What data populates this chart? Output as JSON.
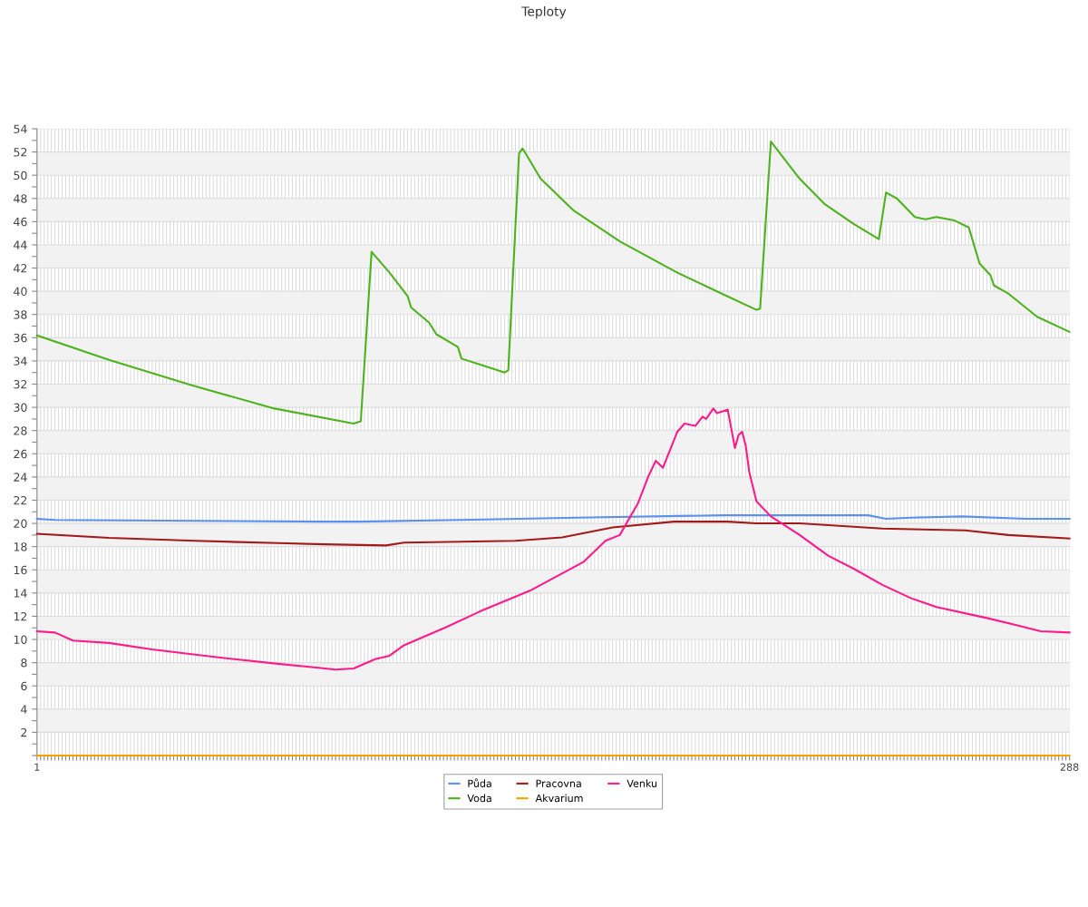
{
  "chart_data": {
    "type": "line",
    "title": "Teploty",
    "legend": "bottom",
    "grid": true,
    "marker": "none",
    "line_style": "solid",
    "xlim": [
      1,
      288
    ],
    "xticks": [
      1,
      {
        "value": 2,
        "label": null
      },
      {
        "value": 3,
        "label": null
      },
      {
        "value": 4,
        "label": null
      },
      {
        "value": 5,
        "label": null
      },
      {
        "value": 6,
        "label": null
      },
      {
        "value": 7,
        "label": null
      },
      {
        "value": 8,
        "label": null
      },
      {
        "value": 9,
        "label": null
      },
      {
        "value": 10,
        "label": null
      },
      {
        "value": 11,
        "label": null
      },
      {
        "value": 12,
        "label": null
      },
      {
        "value": 13,
        "label": null
      },
      {
        "value": 14,
        "label": null
      },
      {
        "value": 15,
        "label": null
      },
      {
        "value": 16,
        "label": null
      },
      {
        "value": 17,
        "label": null
      },
      {
        "value": 18,
        "label": null
      },
      {
        "value": 19,
        "label": null
      },
      {
        "value": 20,
        "label": null
      },
      {
        "value": 21,
        "label": null
      },
      {
        "value": 22,
        "label": null
      },
      {
        "value": 23,
        "label": null
      },
      {
        "value": 24,
        "label": null
      },
      {
        "value": 25,
        "label": null
      },
      {
        "value": 26,
        "label": null
      },
      {
        "value": 27,
        "label": null
      },
      {
        "value": 28,
        "label": null
      },
      {
        "value": 29,
        "label": null
      },
      {
        "value": 30,
        "label": null
      },
      {
        "value": 31,
        "label": null
      },
      {
        "value": 32,
        "label": null
      },
      {
        "value": 33,
        "label": null
      },
      {
        "value": 34,
        "label": null
      },
      {
        "value": 35,
        "label": null
      },
      {
        "value": 36,
        "label": null
      },
      {
        "value": 37,
        "label": null
      },
      {
        "value": 38,
        "label": null
      },
      {
        "value": 39,
        "label": null
      },
      {
        "value": 40,
        "label": null
      },
      {
        "value": 41,
        "label": null
      },
      {
        "value": 42,
        "label": null
      },
      {
        "value": 43,
        "label": null
      },
      {
        "value": 44,
        "label": null
      },
      {
        "value": 45,
        "label": null
      },
      {
        "value": 46,
        "label": null
      },
      {
        "value": 47,
        "label": null
      },
      {
        "value": 48,
        "label": null
      },
      {
        "value": 49,
        "label": null
      },
      {
        "value": 50,
        "label": null
      },
      {
        "value": 51,
        "label": null
      },
      {
        "value": 52,
        "label": null
      },
      {
        "value": 53,
        "label": null
      },
      {
        "value": 54,
        "label": null
      },
      {
        "value": 55,
        "label": null
      },
      {
        "value": 56,
        "label": null
      },
      {
        "value": 57,
        "label": null
      },
      {
        "value": 58,
        "label": null
      },
      {
        "value": 59,
        "label": null
      },
      {
        "value": 60,
        "label": null
      },
      {
        "value": 61,
        "label": null
      },
      {
        "value": 62,
        "label": null
      },
      {
        "value": 63,
        "label": null
      },
      {
        "value": 64,
        "label": null
      },
      {
        "value": 65,
        "label": null
      },
      {
        "value": 66,
        "label": null
      },
      {
        "value": 67,
        "label": null
      },
      {
        "value": 68,
        "label": null
      },
      {
        "value": 69,
        "label": null
      },
      {
        "value": 70,
        "label": null
      },
      {
        "value": 71,
        "label": null
      },
      {
        "value": 72,
        "label": null
      },
      {
        "value": 73,
        "label": null
      },
      {
        "value": 74,
        "label": null
      },
      {
        "value": 75,
        "label": null
      },
      {
        "value": 76,
        "label": null
      },
      {
        "value": 77,
        "label": null
      },
      {
        "value": 78,
        "label": null
      },
      {
        "value": 79,
        "label": null
      },
      {
        "value": 80,
        "label": null
      },
      {
        "value": 81,
        "label": null
      },
      {
        "value": 82,
        "label": null
      },
      {
        "value": 83,
        "label": null
      },
      {
        "value": 84,
        "label": null
      },
      {
        "value": 85,
        "label": null
      },
      {
        "value": 86,
        "label": null
      },
      {
        "value": 87,
        "label": null
      },
      {
        "value": 88,
        "label": null
      },
      {
        "value": 89,
        "label": null
      },
      {
        "value": 90,
        "label": null
      },
      {
        "value": 91,
        "label": null
      },
      {
        "value": 92,
        "label": null
      },
      {
        "value": 93,
        "label": null
      },
      {
        "value": 94,
        "label": null
      },
      {
        "value": 95,
        "label": null
      },
      {
        "value": 96,
        "label": null
      },
      {
        "value": 97,
        "label": null
      },
      {
        "value": 98,
        "label": null
      },
      {
        "value": 99,
        "label": null
      },
      {
        "value": 100,
        "label": null
      },
      {
        "value": 101,
        "label": null
      },
      {
        "value": 102,
        "label": null
      },
      {
        "value": 103,
        "label": null
      },
      {
        "value": 104,
        "label": null
      },
      {
        "value": 105,
        "label": null
      },
      {
        "value": 106,
        "label": null
      },
      {
        "value": 107,
        "label": null
      },
      {
        "value": 108,
        "label": null
      },
      {
        "value": 109,
        "label": null
      },
      {
        "value": 110,
        "label": null
      },
      {
        "value": 111,
        "label": null
      },
      {
        "value": 112,
        "label": null
      },
      {
        "value": 113,
        "label": null
      },
      {
        "value": 114,
        "label": null
      },
      {
        "value": 115,
        "label": null
      },
      {
        "value": 116,
        "label": null
      },
      {
        "value": 117,
        "label": null
      },
      {
        "value": 118,
        "label": null
      },
      {
        "value": 119,
        "label": null
      },
      {
        "value": 120,
        "label": null
      },
      {
        "value": 121,
        "label": null
      },
      {
        "value": 122,
        "label": null
      },
      {
        "value": 123,
        "label": null
      },
      {
        "value": 124,
        "label": null
      },
      {
        "value": 125,
        "label": null
      },
      {
        "value": 126,
        "label": null
      },
      {
        "value": 127,
        "label": null
      },
      {
        "value": 128,
        "label": null
      },
      {
        "value": 129,
        "label": null
      },
      {
        "value": 130,
        "label": null
      },
      {
        "value": 131,
        "label": null
      },
      {
        "value": 132,
        "label": null
      },
      {
        "value": 133,
        "label": null
      },
      {
        "value": 134,
        "label": null
      },
      {
        "value": 135,
        "label": null
      },
      {
        "value": 136,
        "label": null
      },
      {
        "value": 137,
        "label": null
      },
      {
        "value": 138,
        "label": null
      },
      {
        "value": 139,
        "label": null
      },
      {
        "value": 140,
        "label": null
      },
      {
        "value": 141,
        "label": null
      },
      {
        "value": 142,
        "label": null
      },
      {
        "value": 143,
        "label": null
      },
      {
        "value": 144,
        "label": null
      },
      {
        "value": 145,
        "label": null
      },
      {
        "value": 146,
        "label": null
      },
      {
        "value": 147,
        "label": null
      },
      {
        "value": 148,
        "label": null
      },
      {
        "value": 149,
        "label": null
      },
      {
        "value": 150,
        "label": null
      },
      {
        "value": 151,
        "label": null
      },
      {
        "value": 152,
        "label": null
      },
      {
        "value": 153,
        "label": null
      },
      {
        "value": 154,
        "label": null
      },
      {
        "value": 155,
        "label": null
      },
      {
        "value": 156,
        "label": null
      },
      {
        "value": 157,
        "label": null
      },
      {
        "value": 158,
        "label": null
      },
      {
        "value": 159,
        "label": null
      },
      {
        "value": 160,
        "label": null
      },
      {
        "value": 161,
        "label": null
      },
      {
        "value": 162,
        "label": null
      },
      {
        "value": 163,
        "label": null
      },
      {
        "value": 164,
        "label": null
      },
      {
        "value": 165,
        "label": null
      },
      {
        "value": 166,
        "label": null
      },
      {
        "value": 167,
        "label": null
      },
      {
        "value": 168,
        "label": null
      },
      {
        "value": 169,
        "label": null
      },
      {
        "value": 170,
        "label": null
      },
      {
        "value": 171,
        "label": null
      },
      {
        "value": 172,
        "label": null
      },
      {
        "value": 173,
        "label": null
      },
      {
        "value": 174,
        "label": null
      },
      {
        "value": 175,
        "label": null
      },
      {
        "value": 176,
        "label": null
      },
      {
        "value": 177,
        "label": null
      },
      {
        "value": 178,
        "label": null
      },
      {
        "value": 179,
        "label": null
      },
      {
        "value": 180,
        "label": null
      },
      {
        "value": 181,
        "label": null
      },
      {
        "value": 182,
        "label": null
      },
      {
        "value": 183,
        "label": null
      },
      {
        "value": 184,
        "label": null
      },
      {
        "value": 185,
        "label": null
      },
      {
        "value": 186,
        "label": null
      },
      {
        "value": 187,
        "label": null
      },
      {
        "value": 188,
        "label": null
      },
      {
        "value": 189,
        "label": null
      },
      {
        "value": 190,
        "label": null
      },
      {
        "value": 191,
        "label": null
      },
      {
        "value": 192,
        "label": null
      },
      {
        "value": 193,
        "label": null
      },
      {
        "value": 194,
        "label": null
      },
      {
        "value": 195,
        "label": null
      },
      {
        "value": 196,
        "label": null
      },
      {
        "value": 197,
        "label": null
      },
      {
        "value": 198,
        "label": null
      },
      {
        "value": 199,
        "label": null
      },
      {
        "value": 200,
        "label": null
      },
      {
        "value": 201,
        "label": null
      },
      {
        "value": 202,
        "label": null
      },
      {
        "value": 203,
        "label": null
      },
      {
        "value": 204,
        "label": null
      },
      {
        "value": 205,
        "label": null
      },
      {
        "value": 206,
        "label": null
      },
      {
        "value": 207,
        "label": null
      },
      {
        "value": 208,
        "label": null
      },
      {
        "value": 209,
        "label": null
      },
      {
        "value": 210,
        "label": null
      },
      {
        "value": 211,
        "label": null
      },
      {
        "value": 212,
        "label": null
      },
      {
        "value": 213,
        "label": null
      },
      {
        "value": 214,
        "label": null
      },
      {
        "value": 215,
        "label": null
      },
      {
        "value": 216,
        "label": null
      },
      {
        "value": 217,
        "label": null
      },
      {
        "value": 218,
        "label": null
      },
      {
        "value": 219,
        "label": null
      },
      {
        "value": 220,
        "label": null
      },
      {
        "value": 221,
        "label": null
      },
      {
        "value": 222,
        "label": null
      },
      {
        "value": 223,
        "label": null
      },
      {
        "value": 224,
        "label": null
      },
      {
        "value": 225,
        "label": null
      },
      {
        "value": 226,
        "label": null
      },
      {
        "value": 227,
        "label": null
      },
      {
        "value": 228,
        "label": null
      },
      {
        "value": 229,
        "label": null
      },
      {
        "value": 230,
        "label": null
      },
      {
        "value": 231,
        "label": null
      },
      {
        "value": 232,
        "label": null
      },
      {
        "value": 233,
        "label": null
      },
      {
        "value": 234,
        "label": null
      },
      {
        "value": 235,
        "label": null
      },
      {
        "value": 236,
        "label": null
      },
      {
        "value": 237,
        "label": null
      },
      {
        "value": 238,
        "label": null
      },
      {
        "value": 239,
        "label": null
      },
      {
        "value": 240,
        "label": null
      },
      {
        "value": 241,
        "label": null
      },
      {
        "value": 242,
        "label": null
      },
      {
        "value": 243,
        "label": null
      },
      {
        "value": 244,
        "label": null
      },
      {
        "value": 245,
        "label": null
      },
      {
        "value": 246,
        "label": null
      },
      {
        "value": 247,
        "label": null
      },
      {
        "value": 248,
        "label": null
      },
      {
        "value": 249,
        "label": null
      },
      {
        "value": 250,
        "label": null
      },
      {
        "value": 251,
        "label": null
      },
      {
        "value": 252,
        "label": null
      },
      {
        "value": 253,
        "label": null
      },
      {
        "value": 254,
        "label": null
      },
      {
        "value": 255,
        "label": null
      },
      {
        "value": 256,
        "label": null
      },
      {
        "value": 257,
        "label": null
      },
      {
        "value": 258,
        "label": null
      },
      {
        "value": 259,
        "label": null
      },
      {
        "value": 260,
        "label": null
      },
      {
        "value": 261,
        "label": null
      },
      {
        "value": 262,
        "label": null
      },
      {
        "value": 263,
        "label": null
      },
      {
        "value": 264,
        "label": null
      },
      {
        "value": 265,
        "label": null
      },
      {
        "value": 266,
        "label": null
      },
      {
        "value": 267,
        "label": null
      },
      {
        "value": 268,
        "label": null
      },
      {
        "value": 269,
        "label": null
      },
      {
        "value": 270,
        "label": null
      },
      {
        "value": 271,
        "label": null
      },
      {
        "value": 272,
        "label": null
      },
      {
        "value": 273,
        "label": null
      },
      {
        "value": 274,
        "label": null
      },
      {
        "value": 275,
        "label": null
      },
      {
        "value": 276,
        "label": null
      },
      {
        "value": 277,
        "label": null
      },
      {
        "value": 278,
        "label": null
      },
      {
        "value": 279,
        "label": null
      },
      {
        "value": 280,
        "label": null
      },
      {
        "value": 281,
        "label": null
      },
      {
        "value": 282,
        "label": null
      },
      {
        "value": 283,
        "label": null
      },
      {
        "value": 284,
        "label": null
      },
      {
        "value": 285,
        "label": null
      },
      {
        "value": 286,
        "label": null
      },
      {
        "value": 287,
        "label": null
      },
      288
    ],
    "ylim": [
      0,
      54
    ],
    "yticks": [
      {
        "value": 0,
        "label": null
      },
      {
        "value": 1,
        "label": null
      },
      2,
      {
        "value": 3,
        "label": null
      },
      4,
      {
        "value": 5,
        "label": null
      },
      6,
      {
        "value": 7,
        "label": null
      },
      8,
      {
        "value": 9,
        "label": null
      },
      10,
      {
        "value": 11,
        "label": null
      },
      12,
      {
        "value": 13,
        "label": null
      },
      14,
      {
        "value": 15,
        "label": null
      },
      16,
      {
        "value": 17,
        "label": null
      },
      18,
      {
        "value": 19,
        "label": null
      },
      20,
      {
        "value": 21,
        "label": null
      },
      22,
      {
        "value": 23,
        "label": null
      },
      24,
      {
        "value": 25,
        "label": null
      },
      26,
      {
        "value": 27,
        "label": null
      },
      28,
      {
        "value": 29,
        "label": null
      },
      30,
      {
        "value": 31,
        "label": null
      },
      32,
      {
        "value": 33,
        "label": null
      },
      34,
      {
        "value": 35,
        "label": null
      },
      36,
      {
        "value": 37,
        "label": null
      },
      38,
      {
        "value": 39,
        "label": null
      },
      40,
      {
        "value": 41,
        "label": null
      },
      42,
      {
        "value": 43,
        "label": null
      },
      44,
      {
        "value": 45,
        "label": null
      },
      46,
      {
        "value": 47,
        "label": null
      },
      48,
      {
        "value": 49,
        "label": null
      },
      50,
      {
        "value": 51,
        "label": null
      },
      52,
      {
        "value": 53,
        "label": null
      },
      54
    ],
    "series": [
      {
        "name": "Půda",
        "color": "#5b8ff0",
        "x": [
          1,
          6,
          56,
          80,
          91,
          118,
          151,
          192,
          205,
          232,
          237,
          244,
          258,
          276,
          288
        ],
        "values": [
          20.4,
          20.3,
          20.2,
          20.15,
          20.15,
          20.3,
          20.5,
          20.7,
          20.7,
          20.7,
          20.4,
          20.5,
          20.6,
          20.4,
          20.4
        ]
      },
      {
        "name": "Voda",
        "color": "#4cb31c",
        "x": [
          1,
          21,
          44,
          67,
          89,
          91,
          94,
          99,
          104,
          105,
          110,
          112,
          118,
          119,
          125,
          131,
          132,
          135,
          136,
          141,
          150,
          163,
          179,
          192,
          201,
          202,
          205,
          213,
          220,
          228,
          235,
          237,
          240,
          245,
          248,
          251,
          256,
          260,
          263,
          266,
          267,
          271,
          279,
          288
        ],
        "values": [
          36.2,
          34.1,
          31.9,
          29.9,
          28.6,
          28.8,
          43.4,
          41.6,
          39.6,
          38.6,
          37.3,
          36.3,
          35.2,
          34.2,
          33.6,
          33.0,
          33.2,
          51.9,
          52.3,
          49.7,
          47.0,
          44.3,
          41.6,
          39.7,
          38.4,
          38.5,
          52.9,
          49.7,
          47.5,
          45.8,
          44.5,
          48.5,
          48.0,
          46.4,
          46.2,
          46.4,
          46.1,
          45.5,
          42.4,
          41.4,
          40.5,
          39.8,
          37.8,
          36.5
        ]
      },
      {
        "name": "Pracovna",
        "color": "#a31a1a",
        "x": [
          1,
          21,
          45,
          68,
          81,
          98,
          103,
          134,
          147,
          161,
          178,
          193,
          201,
          213,
          236,
          259,
          271,
          288
        ],
        "values": [
          19.1,
          18.75,
          18.5,
          18.3,
          18.2,
          18.1,
          18.35,
          18.5,
          18.8,
          19.65,
          20.15,
          20.15,
          20.0,
          20.0,
          19.55,
          19.4,
          19.0,
          18.7
        ]
      },
      {
        "name": "Akvarium",
        "color": "#f5a200",
        "x": [
          1,
          288
        ],
        "values": [
          0,
          0
        ]
      },
      {
        "name": "Venku",
        "color": "#ff1a8c",
        "x": [
          1,
          6,
          11,
          21,
          33,
          45,
          56,
          68,
          78,
          84,
          89,
          95,
          99,
          103,
          115,
          124,
          138,
          153,
          159,
          163,
          168,
          171,
          173,
          175,
          179,
          181,
          184,
          186,
          187,
          189,
          190,
          192,
          193,
          195,
          196,
          197,
          198,
          199,
          201,
          205,
          213,
          221,
          228,
          236,
          244,
          251,
          265,
          273,
          280,
          288
        ],
        "values": [
          10.7,
          10.6,
          9.9,
          9.7,
          9.15,
          8.7,
          8.3,
          7.9,
          7.6,
          7.4,
          7.5,
          8.3,
          8.6,
          9.5,
          11.1,
          12.4,
          14.2,
          16.7,
          18.5,
          19.0,
          21.7,
          24.1,
          25.4,
          24.8,
          27.9,
          28.6,
          28.4,
          29.2,
          29.0,
          29.9,
          29.5,
          29.7,
          29.8,
          26.5,
          27.6,
          27.9,
          26.7,
          24.4,
          21.9,
          20.6,
          19.0,
          17.2,
          16.1,
          14.7,
          13.55,
          12.8,
          11.85,
          11.25,
          10.7,
          10.6
        ]
      }
    ]
  }
}
